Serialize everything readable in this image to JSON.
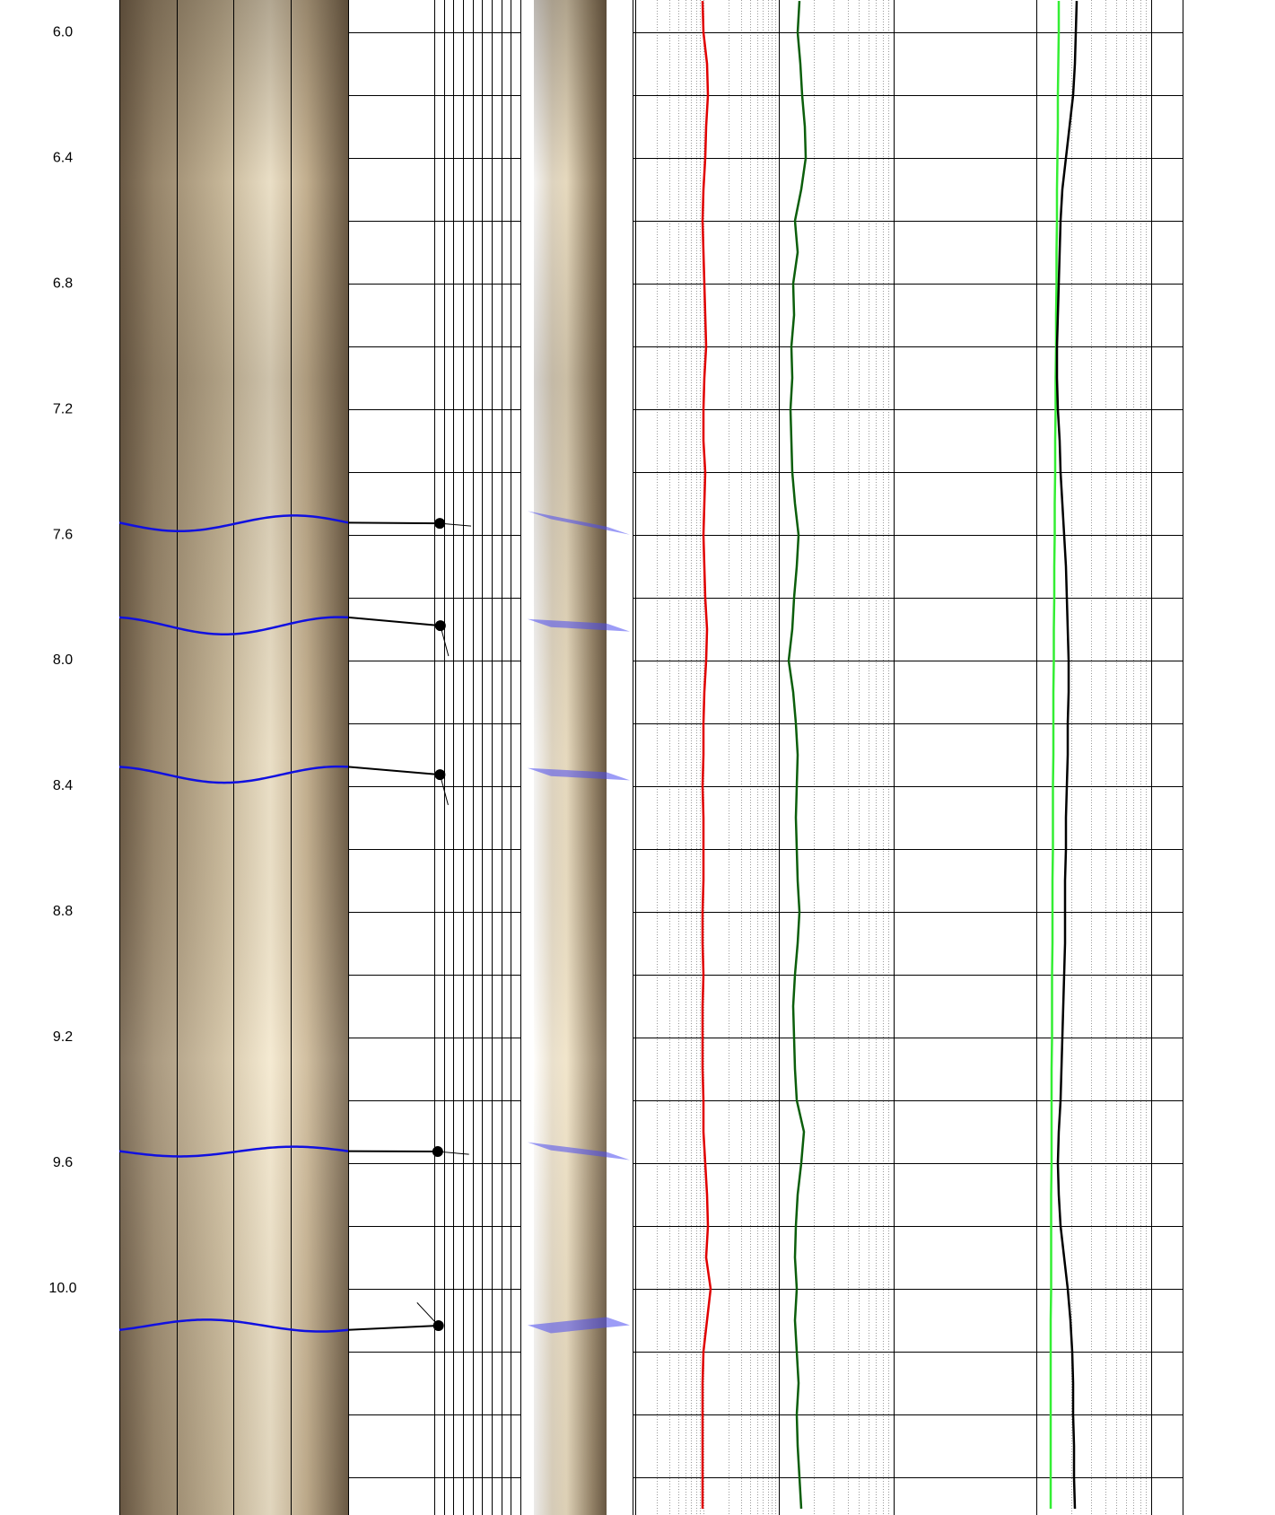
{
  "chart_data": {
    "type": "borehole-log",
    "ylim": [
      5.897,
      10.72
    ],
    "yticks": [
      {
        "value": 6.0,
        "label": "6.0"
      },
      {
        "value": 6.4,
        "label": "6.4"
      },
      {
        "value": 6.8,
        "label": "6.8"
      },
      {
        "value": 7.2,
        "label": "7.2"
      },
      {
        "value": 7.6,
        "label": "7.6"
      },
      {
        "value": 8.0,
        "label": "8.0"
      },
      {
        "value": 8.4,
        "label": "8.4"
      },
      {
        "value": 8.8,
        "label": "8.8"
      },
      {
        "value": 9.2,
        "label": "9.2"
      },
      {
        "value": 9.6,
        "label": "9.6"
      },
      {
        "value": 10.0,
        "label": "10.0"
      }
    ],
    "ygrid": [
      6.0,
      6.2,
      6.4,
      6.6,
      6.8,
      7.0,
      7.2,
      7.4,
      7.6,
      7.8,
      8.0,
      8.2,
      8.4,
      8.6,
      8.8,
      9.0,
      9.2,
      9.4,
      9.6,
      9.8,
      10.0,
      10.2,
      10.4,
      10.6
    ],
    "dip_xlim": [
      0,
      90
    ],
    "dip_xticks": [
      45,
      50,
      55,
      60,
      65,
      70,
      75,
      80,
      85,
      90
    ],
    "dips": [
      {
        "depth": 7.563,
        "dip": 47.9,
        "azimuth": 95
      },
      {
        "depth": 7.889,
        "dip": 48.2,
        "azimuth": 165
      },
      {
        "depth": 8.363,
        "dip": 48.0,
        "azimuth": 165
      },
      {
        "depth": 9.563,
        "dip": 46.8,
        "azimuth": 95
      },
      {
        "depth": 10.117,
        "dip": 47.2,
        "azimuth": 317
      }
    ],
    "curve_xlim": [
      0,
      610
    ],
    "curve_xticks": [
      0,
      160,
      288,
      447,
      575,
      610
    ],
    "curve_minor_xticks": [
      24,
      38,
      48,
      56,
      62,
      68,
      72,
      76,
      104,
      118,
      128,
      136,
      142,
      148,
      152,
      156,
      199,
      221,
      237,
      249,
      260,
      268,
      276,
      282,
      486,
      508,
      524,
      536,
      547,
      555,
      563,
      569
    ],
    "depths": [
      5.9,
      6.0,
      6.1,
      6.2,
      6.3,
      6.4,
      6.5,
      6.6,
      6.7,
      6.8,
      6.9,
      7.0,
      7.1,
      7.2,
      7.3,
      7.4,
      7.5,
      7.6,
      7.7,
      7.8,
      7.9,
      8.0,
      8.1,
      8.2,
      8.3,
      8.4,
      8.5,
      8.6,
      8.7,
      8.8,
      8.9,
      9.0,
      9.1,
      9.2,
      9.3,
      9.4,
      9.5,
      9.6,
      9.7,
      9.8,
      9.9,
      10.0,
      10.1,
      10.2,
      10.3,
      10.4,
      10.5,
      10.6,
      10.7
    ],
    "series": [
      {
        "color": "#e00000",
        "values": [
          75,
          76,
          80,
          81,
          79,
          78,
          76,
          75,
          76,
          77,
          78,
          79,
          77,
          76,
          76,
          78,
          77,
          76,
          77,
          78,
          80,
          79,
          77,
          76,
          76,
          75,
          76,
          76,
          76,
          75,
          75,
          76,
          75,
          75,
          75,
          76,
          76,
          78,
          80,
          81,
          79,
          84,
          80,
          76,
          75,
          75,
          75,
          75,
          75
        ]
      },
      {
        "color": "#0b5e0b",
        "values": [
          183,
          181,
          184,
          186,
          189,
          190,
          185,
          178,
          181,
          176,
          177,
          174,
          175,
          173,
          174,
          175,
          178,
          182,
          180,
          177,
          175,
          171,
          176,
          179,
          181,
          180,
          179,
          180,
          181,
          183,
          181,
          178,
          176,
          177,
          178,
          180,
          188,
          185,
          181,
          179,
          178,
          180,
          178,
          180,
          182,
          180,
          181,
          183,
          185
        ]
      },
      {
        "color": "#33ee33",
        "values": [
          472,
          472,
          471.5,
          471,
          471,
          470.5,
          470,
          470,
          469.5,
          469.5,
          469,
          469,
          468.5,
          468.5,
          468,
          468,
          467.5,
          467.5,
          467,
          467,
          466.5,
          466.5,
          466,
          466,
          466,
          465.5,
          465.5,
          465.5,
          465,
          465,
          465,
          464.5,
          464.5,
          464.5,
          464,
          464,
          464,
          464,
          463.5,
          463.5,
          463.5,
          463.5,
          463,
          463,
          463,
          463,
          463,
          463,
          463
        ]
      },
      {
        "color": "#000000",
        "values": [
          492,
          491,
          490,
          488,
          484,
          480,
          476,
          474,
          473,
          472,
          471,
          470,
          470,
          471,
          473,
          474,
          476,
          478,
          480,
          481,
          482,
          483,
          483,
          482,
          482,
          481,
          480,
          480,
          479,
          479,
          479,
          478,
          477,
          476,
          475,
          474,
          472,
          471,
          472,
          474,
          478,
          482,
          485,
          487,
          488,
          488,
          489,
          489,
          490
        ]
      }
    ]
  }
}
